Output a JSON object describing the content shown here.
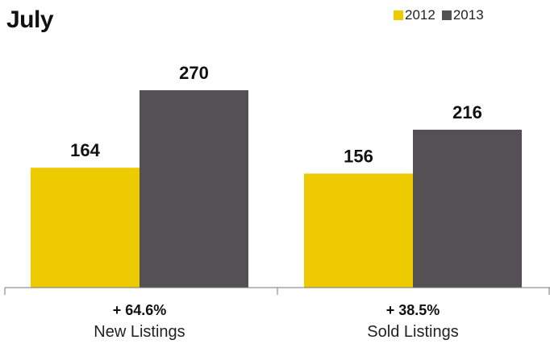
{
  "chart_data": {
    "type": "bar",
    "title": "July",
    "categories": [
      "New Listings",
      "Sold Listings"
    ],
    "change_labels": [
      "+ 64.6%",
      "+ 38.5%"
    ],
    "series": [
      {
        "name": "2012",
        "color": "#EECB00",
        "values": [
          164,
          156
        ]
      },
      {
        "name": "2013",
        "color": "#535154",
        "values": [
          270,
          216
        ]
      }
    ],
    "ylim": [
      0,
      300
    ],
    "grid": false,
    "legend": "top-right"
  }
}
